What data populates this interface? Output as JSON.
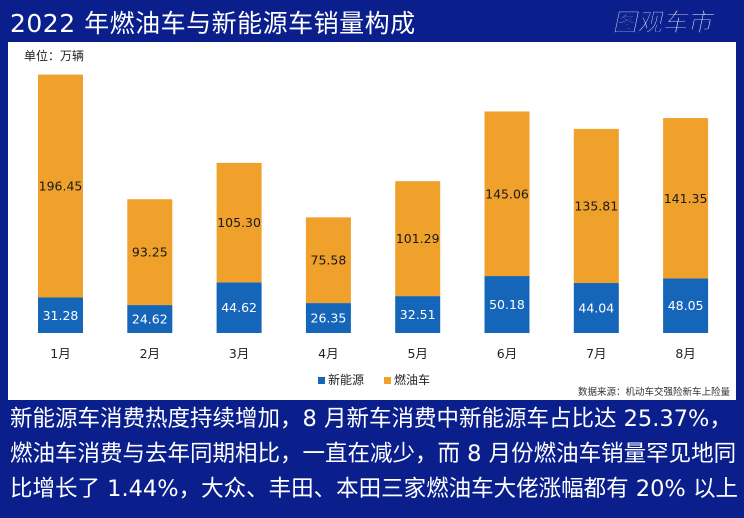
{
  "page": {
    "title": "2022 年燃油车与新能源车销量构成",
    "logo_text": "图观车市",
    "caption": "新能源车消费热度持续增加，8 月新车消费中新能源车占比达 25.37%，燃油车消费与去年同期相比，一直在减少，而 8 月份燃油车销量罕见地同比增长了 1.44%，大众、丰田、本田三家燃油车大佬涨幅都有 20% 以上"
  },
  "colors": {
    "background": "#0a1f8c",
    "new_energy": "#1565b8",
    "fuel": "#f0a12c",
    "panel": "#ffffff"
  },
  "chart_data": {
    "type": "bar",
    "stacked": true,
    "unit_label": "单位：万辆",
    "categories": [
      "1月",
      "2月",
      "3月",
      "4月",
      "5月",
      "6月",
      "7月",
      "8月"
    ],
    "series": [
      {
        "name": "新能源",
        "color": "#1565b8",
        "values": [
          31.28,
          24.62,
          44.62,
          26.35,
          32.51,
          50.18,
          44.04,
          48.05
        ]
      },
      {
        "name": "燃油车",
        "color": "#f0a12c",
        "values": [
          196.45,
          93.25,
          105.3,
          75.58,
          101.29,
          145.06,
          135.81,
          141.35
        ]
      }
    ],
    "ylim": [
      0,
      230
    ],
    "grid": false,
    "legend_position": "bottom-center",
    "source": "数据来源：机动车交强险新车上险量"
  }
}
